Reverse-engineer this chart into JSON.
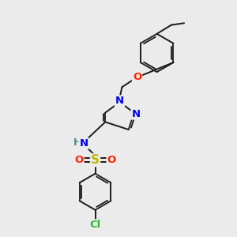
{
  "background_color": "#ebebeb",
  "bond_color": "#1a1a1a",
  "atoms": {
    "Cl": {
      "color": "#33bb33",
      "fontsize": 9.5
    },
    "O": {
      "color": "#ff2200",
      "fontsize": 9.5
    },
    "N": {
      "color": "#0000ee",
      "fontsize": 9.5
    },
    "S": {
      "color": "#bbbb00",
      "fontsize": 11
    },
    "H": {
      "color": "#4a8888",
      "fontsize": 9
    }
  },
  "figsize": [
    3.0,
    3.0
  ],
  "dpi": 100
}
